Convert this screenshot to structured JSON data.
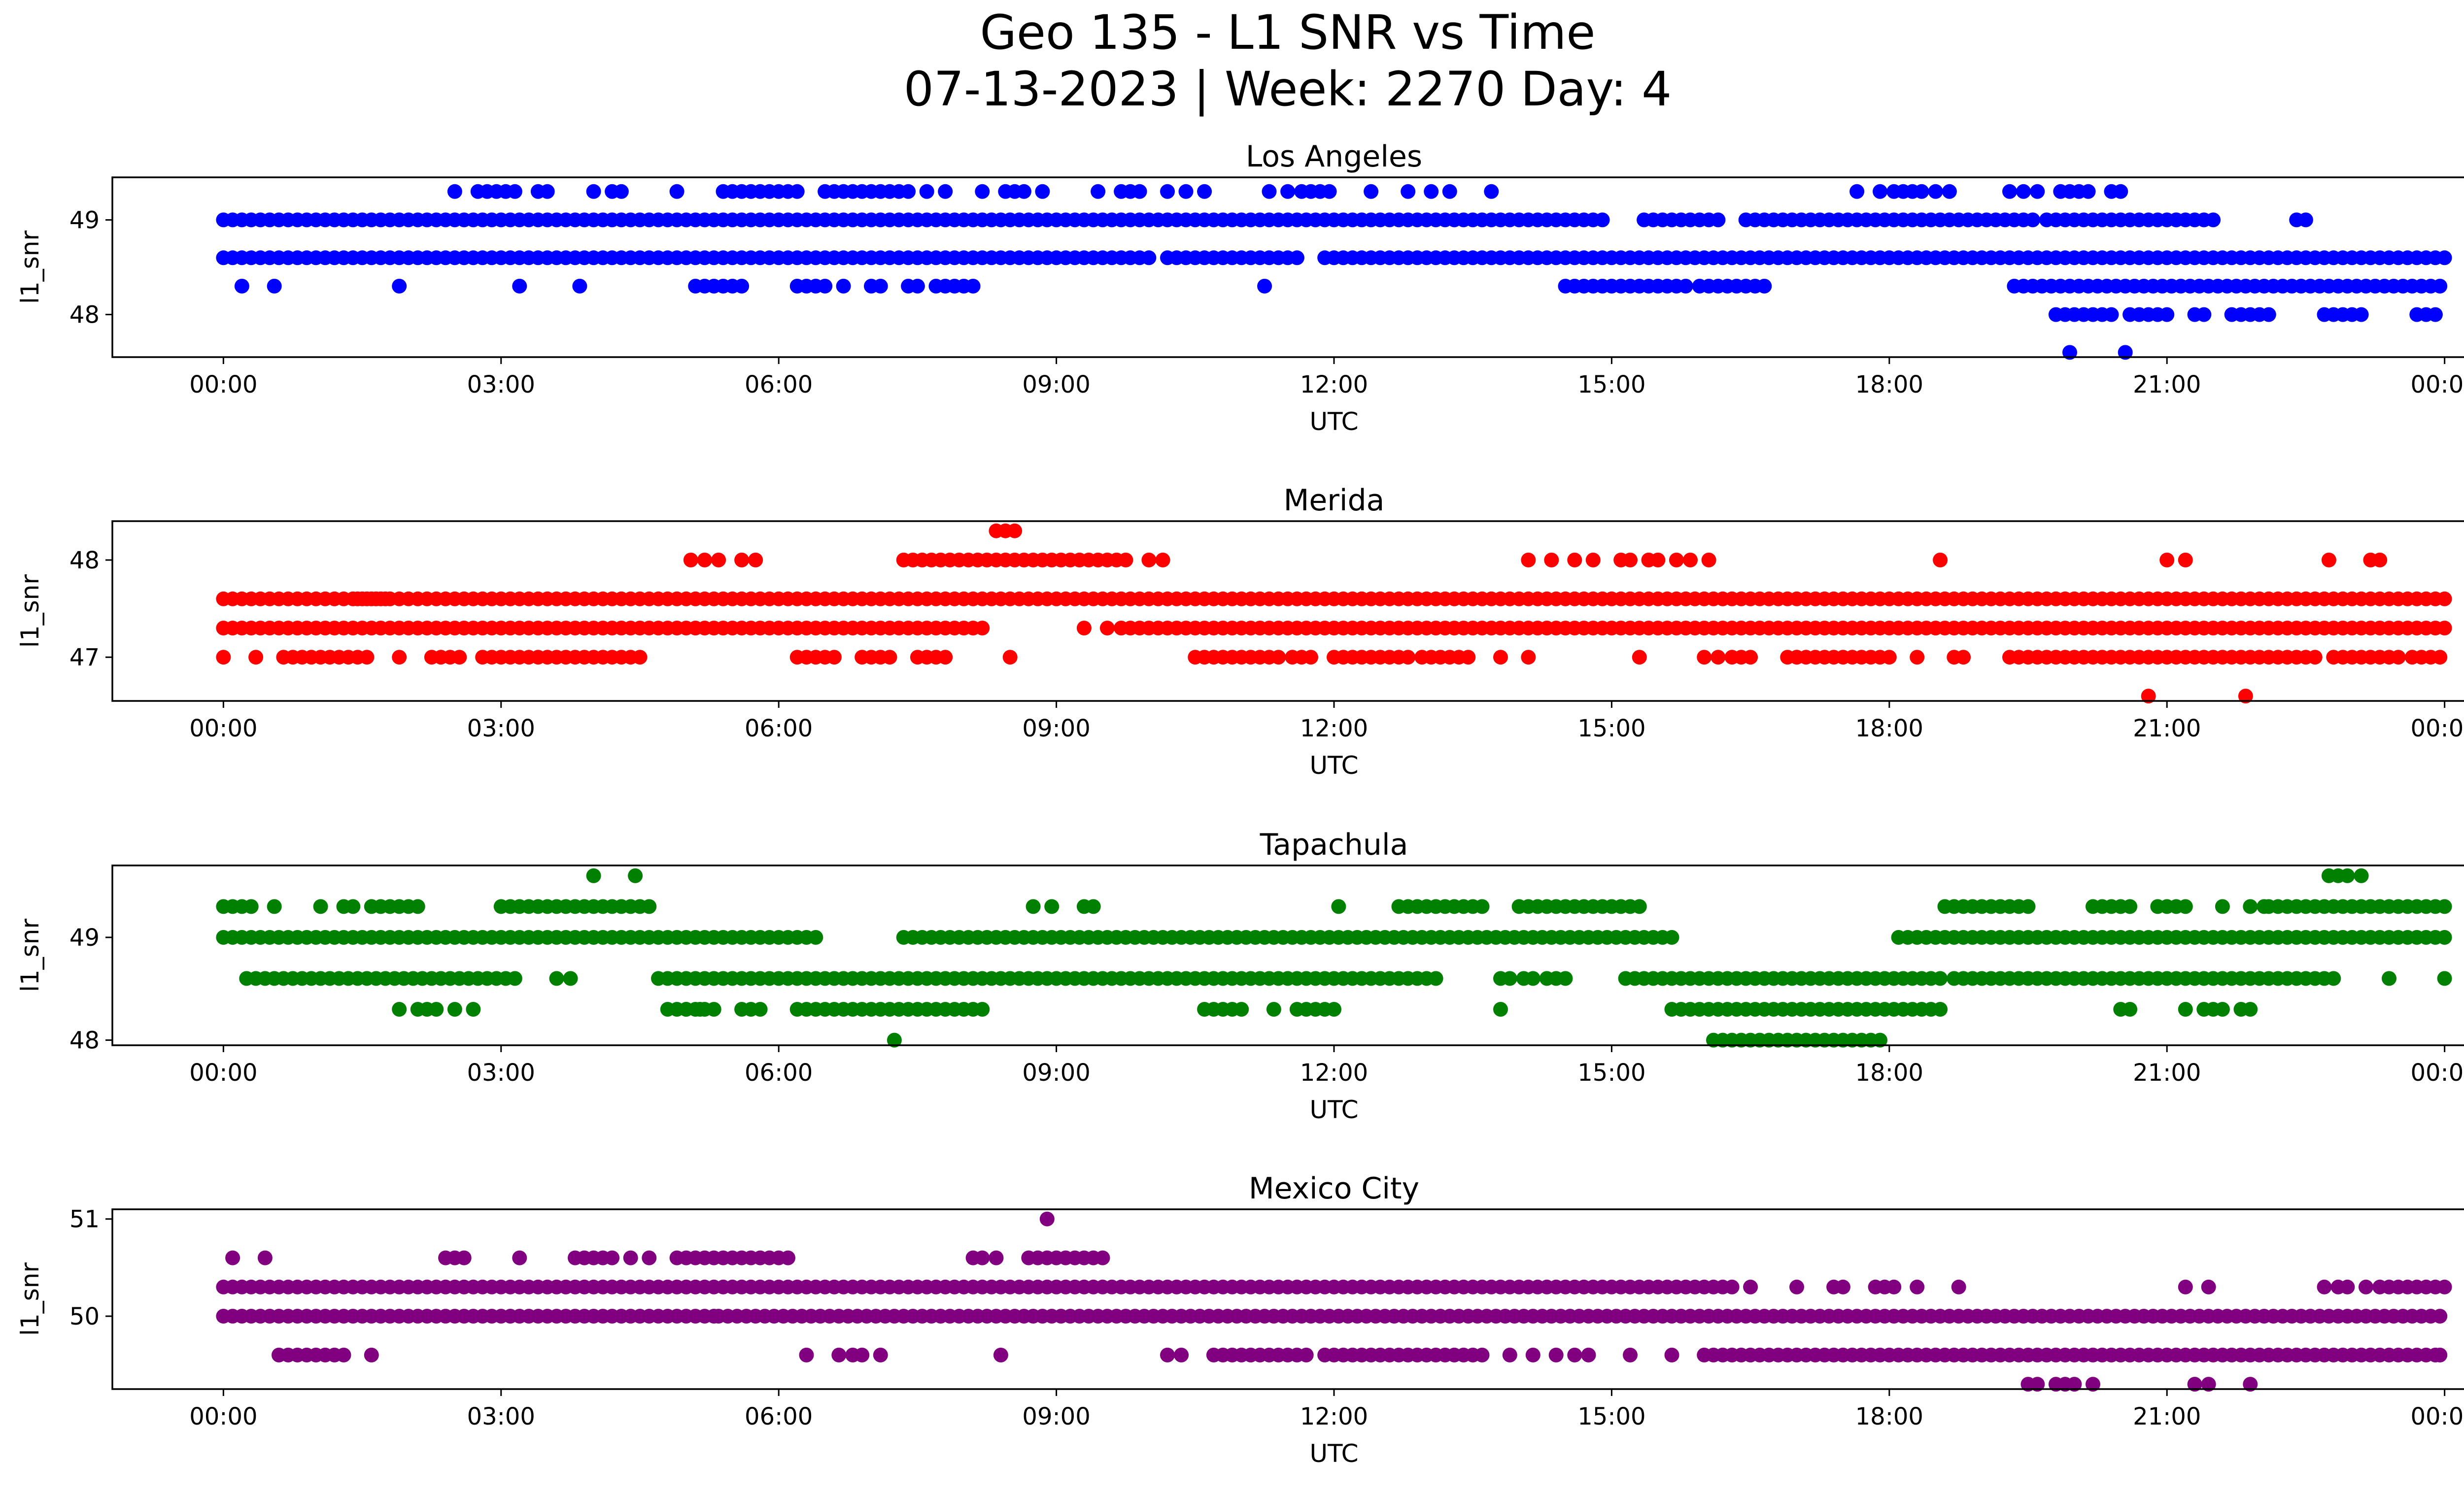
{
  "figure": {
    "title_line1": "Geo 135 - L1 SNR vs Time",
    "title_line2": "07-13-2023 | Week: 2270 Day: 4"
  },
  "chart_data": [
    {
      "type": "scatter",
      "title": "Los Angeles",
      "xlabel": "UTC",
      "ylabel": "l1_snr",
      "color": "#0000ff",
      "x_tick_labels": [
        "00:00",
        "03:00",
        "06:00",
        "09:00",
        "12:00",
        "15:00",
        "18:00",
        "21:00",
        "00:00"
      ],
      "x_ticks_hours": [
        0,
        3,
        6,
        9,
        12,
        15,
        18,
        21,
        24
      ],
      "xlim_hours": [
        -1.2,
        25.2
      ],
      "y_ticks": [
        48,
        49
      ],
      "ylim": [
        47.55,
        49.45
      ],
      "levels": [
        {
          "y": 49.0,
          "segments": [
            [
              0,
              14.6
            ],
            [
              14.7,
              14.9
            ],
            [
              15.35,
              16.2
            ],
            [
              16.45,
              19.6
            ],
            [
              19.7,
              20.5
            ],
            [
              20.6,
              21.1
            ],
            [
              21.1,
              21.3
            ],
            [
              21.4,
              21.5
            ],
            [
              22.4,
              22.5
            ]
          ]
        },
        {
          "y": 48.6,
          "segments": [
            [
              0,
              9.7
            ],
            [
              9.8,
              10.0
            ],
            [
              10.2,
              11.6
            ],
            [
              11.9,
              24.0
            ]
          ]
        },
        {
          "y": 48.3,
          "segments": [
            [
              14.5,
              15.8
            ],
            [
              15.95,
              16.7
            ],
            [
              19.35,
              24.0
            ]
          ]
        },
        {
          "y": 48.0,
          "segments": [
            [
              19.8,
              20.4
            ],
            [
              20.6,
              21.0
            ],
            [
              21.3,
              21.4
            ],
            [
              21.7,
              22.1
            ],
            [
              22.7,
              22.8
            ],
            [
              22.9,
              23.1
            ],
            [
              23.7,
              23.9
            ]
          ]
        },
        {
          "y": 47.6,
          "points": [
            19.95,
            20.55
          ]
        },
        {
          "y": 49.3,
          "points": [
            2.5,
            2.75,
            2.85,
            2.95,
            3.05,
            3.15,
            3.4,
            3.5,
            4.0,
            4.2,
            4.3,
            4.9,
            5.4,
            5.5,
            5.6,
            5.7,
            5.8,
            5.9,
            6.0,
            6.1,
            6.2,
            6.5,
            6.6,
            6.7,
            6.8,
            6.9,
            7.0,
            7.1,
            7.2,
            7.3,
            7.4,
            7.6,
            7.8,
            8.2,
            8.45,
            8.55,
            8.65,
            8.85,
            9.45,
            9.7,
            9.8,
            9.9,
            10.2,
            10.4,
            10.6,
            11.3,
            11.5,
            11.65,
            11.75,
            11.85,
            11.95,
            12.4,
            12.8,
            13.05,
            13.25,
            13.7,
            17.65,
            17.9,
            18.05,
            18.15,
            18.25,
            18.35,
            18.5,
            18.65,
            19.3,
            19.45,
            19.6,
            19.85,
            19.95,
            20.05,
            20.15,
            20.4,
            20.5
          ]
        },
        {
          "y": 48.3,
          "points": [
            0.2,
            0.55,
            1.9,
            3.2,
            3.85,
            5.1,
            5.2,
            5.3,
            5.4,
            5.5,
            5.6,
            6.2,
            6.3,
            6.4,
            6.5,
            6.7,
            7.0,
            7.1,
            7.4,
            7.5,
            7.7,
            7.8,
            7.9,
            8.0,
            8.1,
            11.25
          ]
        }
      ]
    },
    {
      "type": "scatter",
      "title": "Merida",
      "xlabel": "UTC",
      "ylabel": "l1_snr",
      "color": "#ff0000",
      "x_tick_labels": [
        "00:00",
        "03:00",
        "06:00",
        "09:00",
        "12:00",
        "15:00",
        "18:00",
        "21:00",
        "00:00"
      ],
      "x_ticks_hours": [
        0,
        3,
        6,
        9,
        12,
        15,
        18,
        21,
        24
      ],
      "xlim_hours": [
        -1.2,
        25.2
      ],
      "y_ticks": [
        47,
        48
      ],
      "ylim": [
        46.55,
        48.4
      ],
      "levels": [
        {
          "y": 47.6,
          "segments": [
            [
              0,
              0.85
            ],
            [
              0.9,
              1.35
            ],
            [
              1.45,
              1.8
            ],
            [
              1.4,
              24.0
            ]
          ]
        },
        {
          "y": 47.3,
          "segments": [
            [
              0,
              8.25
            ],
            [
              9.7,
              24.0
            ]
          ]
        },
        {
          "y": 47.0,
          "segments": [
            [
              0.65,
              1.6
            ],
            [
              2.25,
              2.55
            ],
            [
              2.8,
              3.5
            ],
            [
              3.6,
              4.55
            ],
            [
              6.2,
              6.6
            ],
            [
              6.9,
              7.2
            ],
            [
              7.5,
              7.8
            ],
            [
              10.5,
              11.4
            ],
            [
              11.55,
              11.75
            ],
            [
              12.0,
              12.85
            ],
            [
              12.95,
              13.45
            ],
            [
              16.3,
              16.5
            ],
            [
              16.9,
              17.3
            ],
            [
              17.4,
              17.8
            ],
            [
              17.9,
              18.0
            ],
            [
              18.3,
              18.35
            ],
            [
              18.7,
              18.8
            ],
            [
              19.3,
              22.1
            ],
            [
              22.2,
              22.6
            ],
            [
              22.8,
              23.5
            ],
            [
              23.65,
              24.0
            ]
          ]
        },
        {
          "y": 48.0,
          "segments": [
            [
              7.35,
              9.75
            ]
          ]
        },
        {
          "y": 48.3,
          "points": [
            8.35,
            8.45,
            8.55
          ]
        },
        {
          "y": 48.0,
          "points": [
            5.05,
            5.2,
            5.35,
            5.6,
            5.75,
            10.0,
            10.15,
            14.1,
            14.35,
            14.6,
            14.8,
            15.1,
            15.2,
            15.4,
            15.5,
            15.7,
            15.85,
            16.05,
            18.55,
            21.0,
            21.2,
            22.75,
            23.2,
            23.3
          ]
        },
        {
          "y": 47.3,
          "points": [
            9.3,
            9.55
          ]
        },
        {
          "y": 47.0,
          "points": [
            0.0,
            0.35,
            1.9,
            8.5,
            13.8,
            14.1,
            15.3,
            16.0,
            16.15,
            17.0
          ]
        },
        {
          "y": 46.6,
          "points": [
            20.8,
            21.85
          ]
        }
      ]
    },
    {
      "type": "scatter",
      "title": "Tapachula",
      "xlabel": "UTC",
      "ylabel": "l1_snr",
      "color": "#008000",
      "x_tick_labels": [
        "00:00",
        "03:00",
        "06:00",
        "09:00",
        "12:00",
        "15:00",
        "18:00",
        "21:00",
        "00:00"
      ],
      "x_ticks_hours": [
        0,
        3,
        6,
        9,
        12,
        15,
        18,
        21,
        24
      ],
      "xlim_hours": [
        -1.2,
        25.2
      ],
      "y_ticks": [
        48,
        49
      ],
      "ylim": [
        47.95,
        49.7
      ],
      "levels": [
        {
          "y": 49.3,
          "segments": [
            [
              0,
              0.3
            ],
            [
              3.0,
              4.65
            ],
            [
              12.7,
              13.6
            ],
            [
              14.0,
              14.85
            ],
            [
              14.9,
              15.35
            ],
            [
              18.6,
              19.55
            ],
            [
              20.2,
              20.6
            ],
            [
              20.9,
              21.2
            ],
            [
              22.1,
              24.0
            ]
          ]
        },
        {
          "y": 49.0,
          "segments": [
            [
              0,
              4.9
            ],
            [
              5.0,
              6.4
            ],
            [
              7.35,
              15.7
            ],
            [
              18.1,
              24.0
            ]
          ]
        },
        {
          "y": 48.6,
          "segments": [
            [
              0.25,
              3.2
            ],
            [
              4.7,
              13.1
            ],
            [
              15.15,
              18.6
            ],
            [
              18.7,
              22.8
            ]
          ]
        },
        {
          "y": 48.3,
          "segments": [
            [
              4.8,
              5.3
            ],
            [
              5.6,
              5.8
            ],
            [
              6.2,
              8.2
            ],
            [
              10.6,
              10.9
            ],
            [
              11.6,
              11.9
            ],
            [
              15.65,
              18.55
            ]
          ]
        },
        {
          "y": 48.0,
          "segments": [
            [
              16.1,
              17.8
            ]
          ]
        },
        {
          "y": 49.6,
          "points": [
            4.0,
            4.45,
            22.75,
            22.85,
            22.95,
            23.1
          ]
        },
        {
          "y": 49.3,
          "points": [
            0.55,
            1.05,
            1.3,
            1.4,
            1.6,
            1.7,
            1.8,
            1.9,
            2.0,
            2.1,
            8.75,
            8.95,
            9.3,
            9.4,
            12.05,
            21.6,
            21.9,
            22.05
          ]
        },
        {
          "y": 48.6,
          "points": [
            3.6,
            3.75,
            13.8,
            13.9,
            14.05,
            14.15,
            14.3,
            14.4,
            14.5,
            23.4,
            24.0
          ]
        },
        {
          "y": 48.3,
          "points": [
            1.9,
            2.1,
            2.2,
            2.3,
            2.5,
            2.7,
            5.0,
            5.15,
            11.0,
            11.35,
            12.0,
            13.8,
            20.5,
            20.6,
            21.2,
            21.4,
            21.5,
            21.6,
            21.8,
            21.9
          ]
        },
        {
          "y": 48.0,
          "points": [
            7.25,
            17.9
          ]
        }
      ]
    },
    {
      "type": "scatter",
      "title": "Mexico City",
      "xlabel": "UTC",
      "ylabel": "l1_snr",
      "color": "#800080",
      "x_tick_labels": [
        "00:00",
        "03:00",
        "06:00",
        "09:00",
        "12:00",
        "15:00",
        "18:00",
        "21:00",
        "00:00"
      ],
      "x_ticks_hours": [
        0,
        3,
        6,
        9,
        12,
        15,
        18,
        21,
        24
      ],
      "xlim_hours": [
        -1.2,
        25.2
      ],
      "y_ticks": [
        50,
        51
      ],
      "ylim": [
        49.25,
        51.1
      ],
      "levels": [
        {
          "y": 50.3,
          "segments": [
            [
              0,
              16.3
            ],
            [
              23.3,
              24.0
            ]
          ]
        },
        {
          "y": 50.0,
          "segments": [
            [
              0,
              5.2
            ],
            [
              5.35,
              24.0
            ]
          ]
        },
        {
          "y": 49.6,
          "segments": [
            [
              0.6,
              1.3
            ],
            [
              10.7,
              11.7
            ],
            [
              11.9,
              13.6
            ],
            [
              16.0,
              23.9
            ]
          ]
        },
        {
          "y": 50.6,
          "segments": [
            [
              4.9,
              6.1
            ],
            [
              8.7,
              9.5
            ]
          ]
        },
        {
          "y": 51.0,
          "points": [
            8.9
          ]
        },
        {
          "y": 50.6,
          "points": [
            0.1,
            0.45,
            2.4,
            2.5,
            2.6,
            3.2,
            3.8,
            3.9,
            4.0,
            4.1,
            4.2,
            4.4,
            4.6,
            8.1,
            8.2,
            8.35
          ]
        },
        {
          "y": 50.3,
          "points": [
            16.5,
            17.0,
            17.4,
            17.5,
            17.85,
            17.95,
            18.05,
            18.3,
            18.75,
            21.2,
            21.45,
            22.7,
            22.85,
            22.95,
            23.15
          ]
        },
        {
          "y": 50.0,
          "points": [
            5.3
          ]
        },
        {
          "y": 49.6,
          "points": [
            1.6,
            6.3,
            6.65,
            6.8,
            6.9,
            7.1,
            8.4,
            10.2,
            10.35,
            13.9,
            14.15,
            14.4,
            14.6,
            14.75,
            15.2,
            15.65,
            23.95
          ]
        },
        {
          "y": 49.3,
          "points": [
            19.5,
            19.6,
            19.8,
            19.9,
            20.0,
            20.2,
            21.3,
            21.45,
            21.9
          ]
        }
      ]
    }
  ]
}
